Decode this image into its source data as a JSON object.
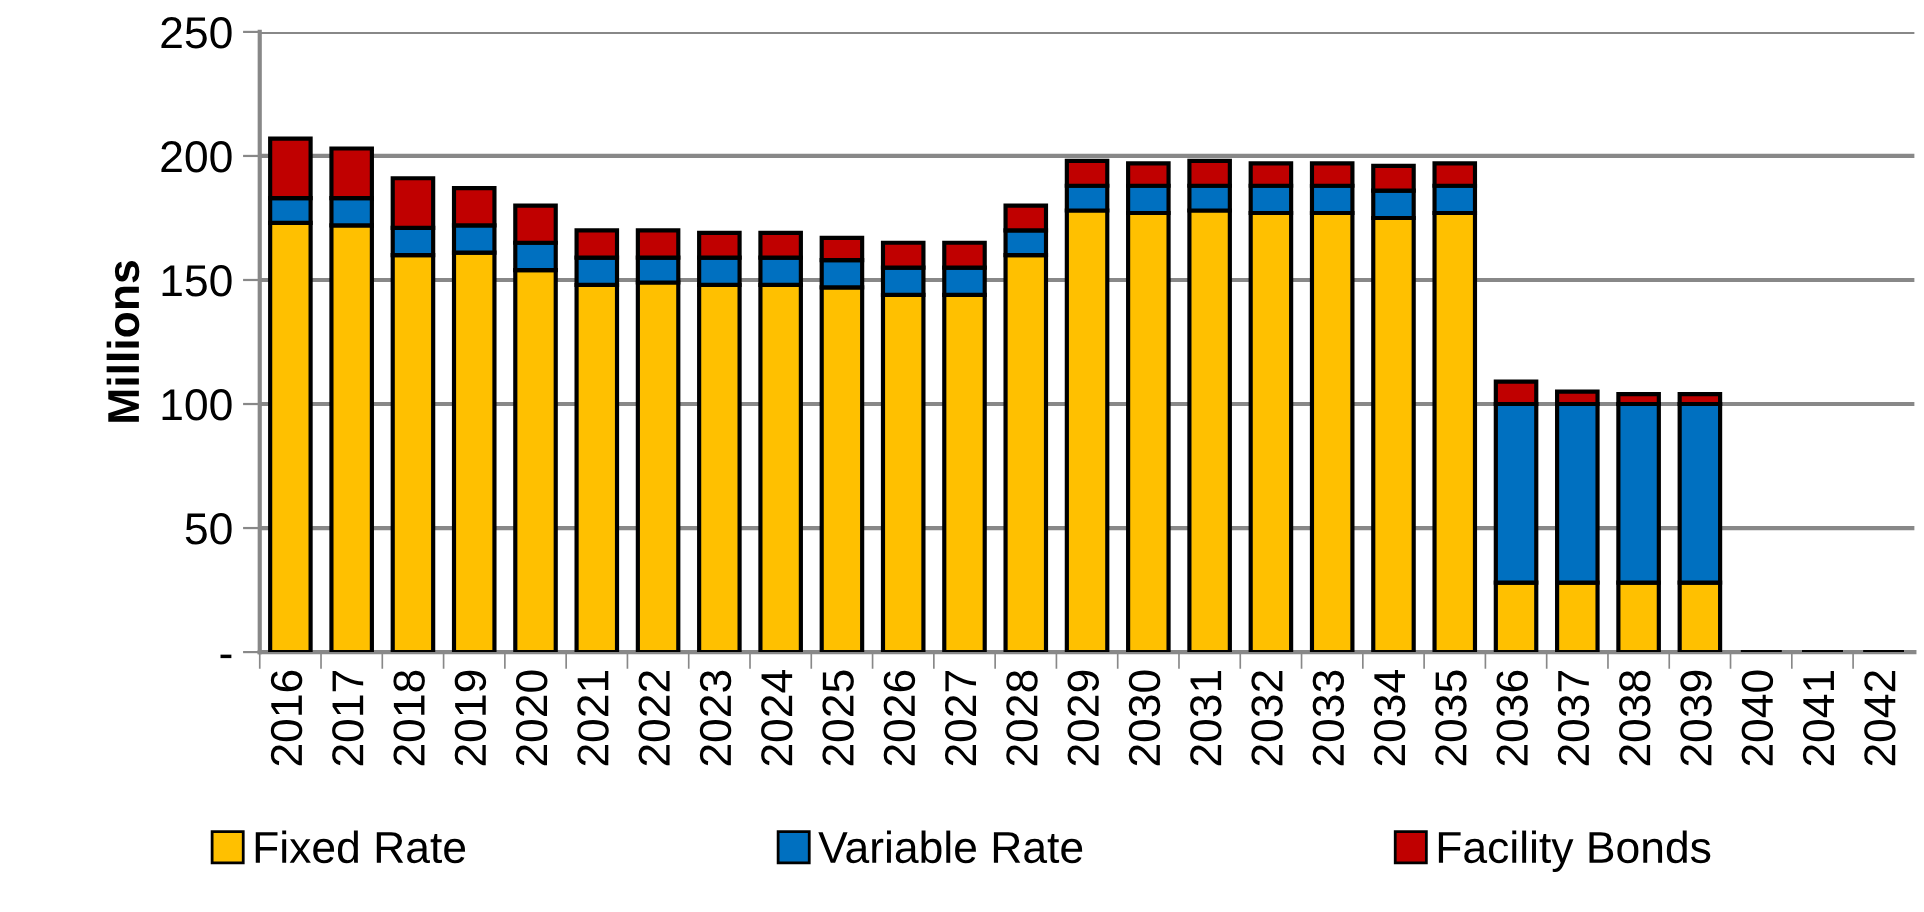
{
  "chart_data": {
    "type": "bar",
    "stacked": true,
    "ylabel": "Millions",
    "categories": [
      "2016",
      "2017",
      "2018",
      "2019",
      "2020",
      "2021",
      "2022",
      "2023",
      "2024",
      "2025",
      "2026",
      "2027",
      "2028",
      "2029",
      "2030",
      "2031",
      "2032",
      "2033",
      "2034",
      "2035",
      "2036",
      "2037",
      "2038",
      "2039",
      "2040",
      "2041",
      "2042"
    ],
    "series": [
      {
        "name": "Fixed Rate",
        "color": "#ffc000",
        "values": [
          173,
          172,
          160,
          161,
          154,
          148,
          149,
          148,
          148,
          147,
          144,
          144,
          160,
          178,
          177,
          178,
          177,
          177,
          175,
          177,
          28,
          28,
          28,
          28,
          null,
          null,
          null
        ]
      },
      {
        "name": "Variable Rate",
        "color": "#0070c0",
        "values": [
          10,
          11,
          11,
          11,
          11,
          11,
          10,
          11,
          11,
          11,
          11,
          11,
          10,
          10,
          11,
          10,
          11,
          11,
          11,
          11,
          72,
          72,
          72,
          72,
          null,
          null,
          null
        ]
      },
      {
        "name": "Facility Bonds",
        "color": "#c00000",
        "values": [
          24,
          20,
          20,
          15,
          15,
          11,
          11,
          10,
          10,
          9,
          10,
          10,
          10,
          10,
          9,
          10,
          9,
          9,
          10,
          9,
          9,
          5,
          4,
          4,
          null,
          null,
          null
        ]
      }
    ],
    "ylim": [
      0,
      250
    ],
    "yticks": [
      {
        "value": 0,
        "label": "-"
      },
      50,
      100,
      150,
      200,
      250
    ],
    "grid": "y",
    "legend": "bottom"
  }
}
